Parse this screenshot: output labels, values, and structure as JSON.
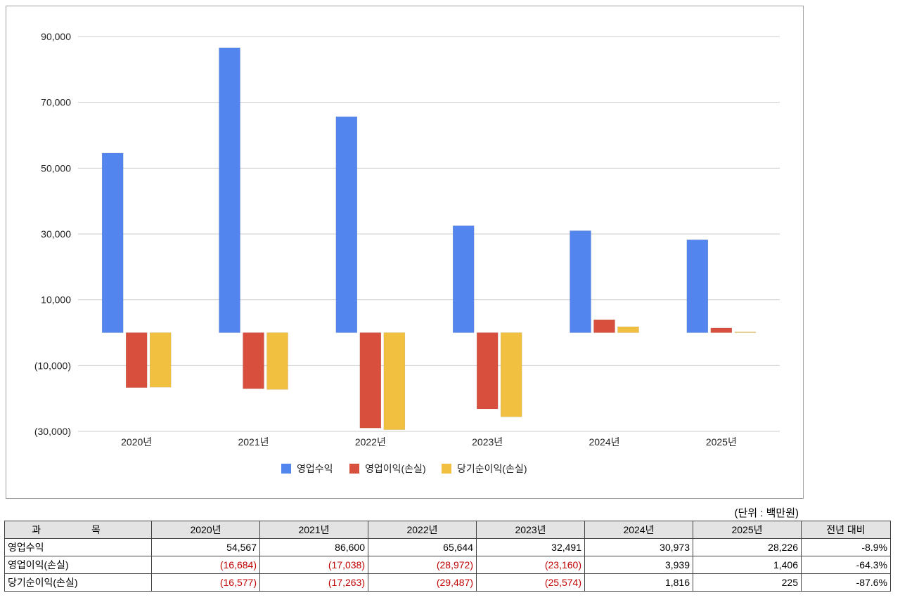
{
  "chart_data": {
    "type": "bar",
    "categories": [
      "2020년",
      "2021년",
      "2022년",
      "2023년",
      "2024년",
      "2025년"
    ],
    "series": [
      {
        "name": "영업수익",
        "color": "#5286ee",
        "values": [
          54567,
          86600,
          65644,
          32491,
          30973,
          28226
        ]
      },
      {
        "name": "영업이익(손실)",
        "color": "#d94f3d",
        "values": [
          -16684,
          -17038,
          -28972,
          -23160,
          3939,
          1406
        ]
      },
      {
        "name": "당기순이익(손실)",
        "color": "#f1c041",
        "values": [
          -16577,
          -17263,
          -29487,
          -25574,
          1816,
          225
        ]
      }
    ],
    "y_ticks": [
      90000,
      70000,
      50000,
      30000,
      10000,
      -10000,
      -30000
    ],
    "y_tick_labels": [
      "90,000",
      "70,000",
      "50,000",
      "30,000",
      "10,000",
      "(10,000)",
      "(30,000)"
    ],
    "ylim": [
      -30000,
      90000
    ],
    "legend_position": "bottom-center",
    "grid": true
  },
  "unit_label": "(단위 : 백만원)",
  "table": {
    "headers": [
      "과 목",
      "2020년",
      "2021년",
      "2022년",
      "2023년",
      "2024년",
      "2025년",
      "전년 대비"
    ],
    "rows": [
      {
        "label": "영업수익",
        "cells": [
          "54,567",
          "86,600",
          "65,644",
          "32,491",
          "30,973",
          "28,226",
          "-8.9%"
        ]
      },
      {
        "label": "영업이익(손실)",
        "cells": [
          "(16,684)",
          "(17,038)",
          "(28,972)",
          "(23,160)",
          "3,939",
          "1,406",
          "-64.3%"
        ]
      },
      {
        "label": "당기순이익(손실)",
        "cells": [
          "(16,577)",
          "(17,263)",
          "(29,487)",
          "(25,574)",
          "1,816",
          "225",
          "-87.6%"
        ]
      }
    ]
  }
}
